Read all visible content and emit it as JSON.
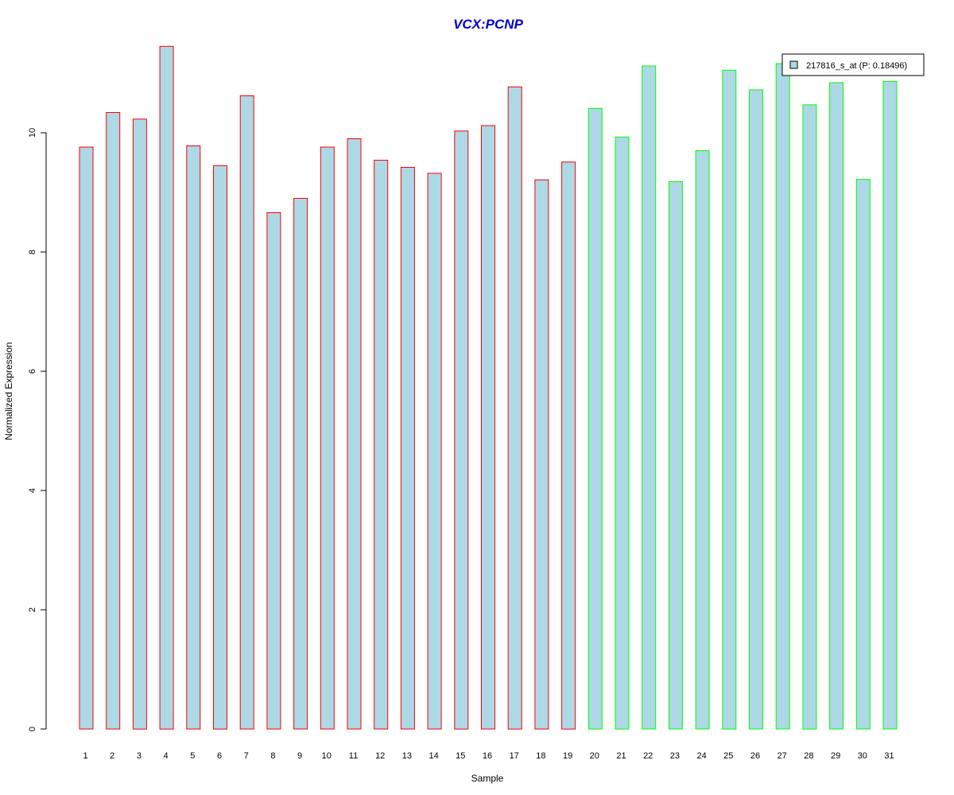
{
  "chart_data": {
    "type": "bar",
    "title": "VCX:PCNP",
    "xlabel": "Sample",
    "ylabel": "Normalized Expression",
    "ylim": [
      0,
      11.5
    ],
    "yticks": [
      0,
      2,
      4,
      6,
      8,
      10
    ],
    "categories": [
      "1",
      "2",
      "3",
      "4",
      "5",
      "6",
      "7",
      "8",
      "9",
      "10",
      "11",
      "12",
      "13",
      "14",
      "15",
      "16",
      "17",
      "18",
      "19",
      "20",
      "21",
      "22",
      "23",
      "24",
      "25",
      "26",
      "27",
      "28",
      "29",
      "30",
      "31"
    ],
    "series": [
      {
        "name": "217816_s_at (P: 0.18496)",
        "values": [
          9.76,
          10.34,
          10.23,
          11.45,
          9.78,
          9.45,
          10.62,
          8.66,
          8.9,
          9.76,
          9.9,
          9.54,
          9.42,
          9.32,
          10.03,
          10.12,
          10.77,
          9.21,
          9.51,
          10.41,
          9.93,
          11.12,
          9.18,
          9.7,
          11.05,
          10.72,
          11.16,
          10.47,
          10.84,
          9.22,
          10.86
        ]
      }
    ],
    "bar_fill": "#add8e6",
    "group_colors": [
      "#ff0000",
      "#00ff00"
    ],
    "groups": [
      1,
      1,
      1,
      1,
      1,
      1,
      1,
      1,
      1,
      1,
      1,
      1,
      1,
      1,
      1,
      1,
      1,
      1,
      1,
      2,
      2,
      2,
      2,
      2,
      2,
      2,
      2,
      2,
      2,
      2,
      2
    ],
    "legend": {
      "label": "217816_s_at (P: 0.18496)",
      "position": "top-right"
    },
    "grid": false
  }
}
